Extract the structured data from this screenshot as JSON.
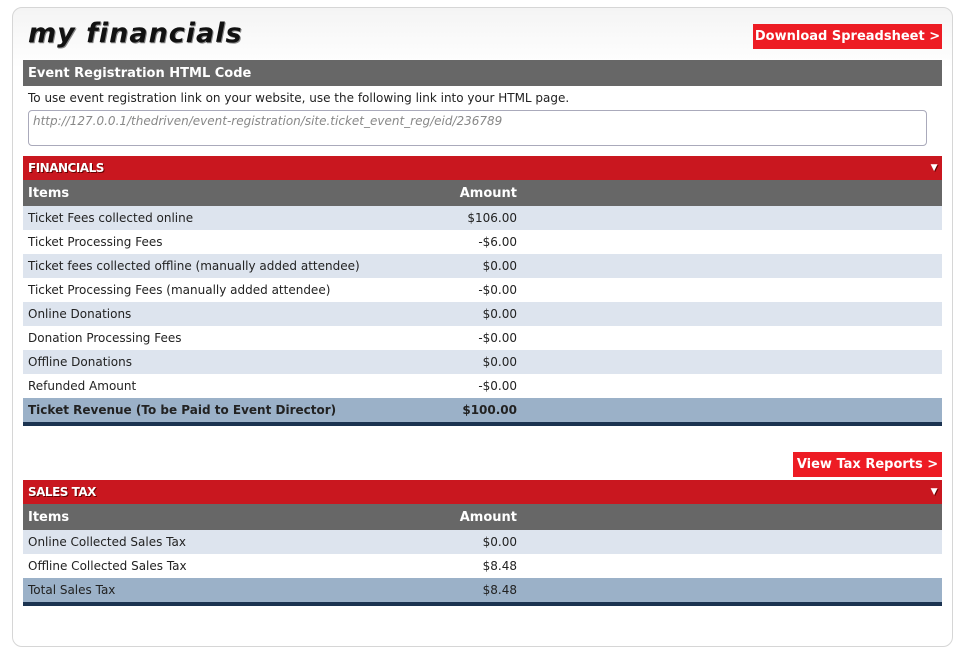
{
  "page": {
    "title": "my financials",
    "download_label": "Download Spreadsheet >"
  },
  "registration": {
    "header": "Event Registration HTML Code",
    "description": "To use event registration link on your website, use the following link into your HTML page.",
    "link": "http://127.0.0.1/thedriven/event-registration/site.ticket_event_reg/eid/236789"
  },
  "financials": {
    "title": "FINANCIALS",
    "col_items": "Items",
    "col_amount": "Amount",
    "rows": [
      {
        "item": "Ticket Fees collected online",
        "amount": "$106.00"
      },
      {
        "item": "Ticket Processing Fees",
        "amount": "-$6.00"
      },
      {
        "item": "Ticket fees collected offline (manually added attendee)",
        "amount": "$0.00"
      },
      {
        "item": "Ticket Processing Fees (manually added attendee)",
        "amount": "-$0.00"
      },
      {
        "item": "Online Donations",
        "amount": "$0.00"
      },
      {
        "item": "Donation Processing Fees",
        "amount": "-$0.00"
      },
      {
        "item": "Offline Donations",
        "amount": "$0.00"
      },
      {
        "item": "Refunded Amount",
        "amount": "-$0.00"
      }
    ],
    "total": {
      "item": "Ticket Revenue (To be Paid to Event Director)",
      "amount": "$100.00"
    }
  },
  "sales_tax": {
    "view_label": "View Tax Reports >",
    "title": "SALES TAX",
    "col_items": "Items",
    "col_amount": "Amount",
    "rows": [
      {
        "item": "Online Collected Sales Tax",
        "amount": "$0.00"
      },
      {
        "item": "Offline Collected Sales Tax",
        "amount": "$8.48"
      }
    ],
    "total": {
      "item": "Total Sales Tax",
      "amount": "$8.48"
    }
  },
  "colors": {
    "accent": "#ed1c24",
    "section": "#c9171f",
    "header": "#676767"
  }
}
